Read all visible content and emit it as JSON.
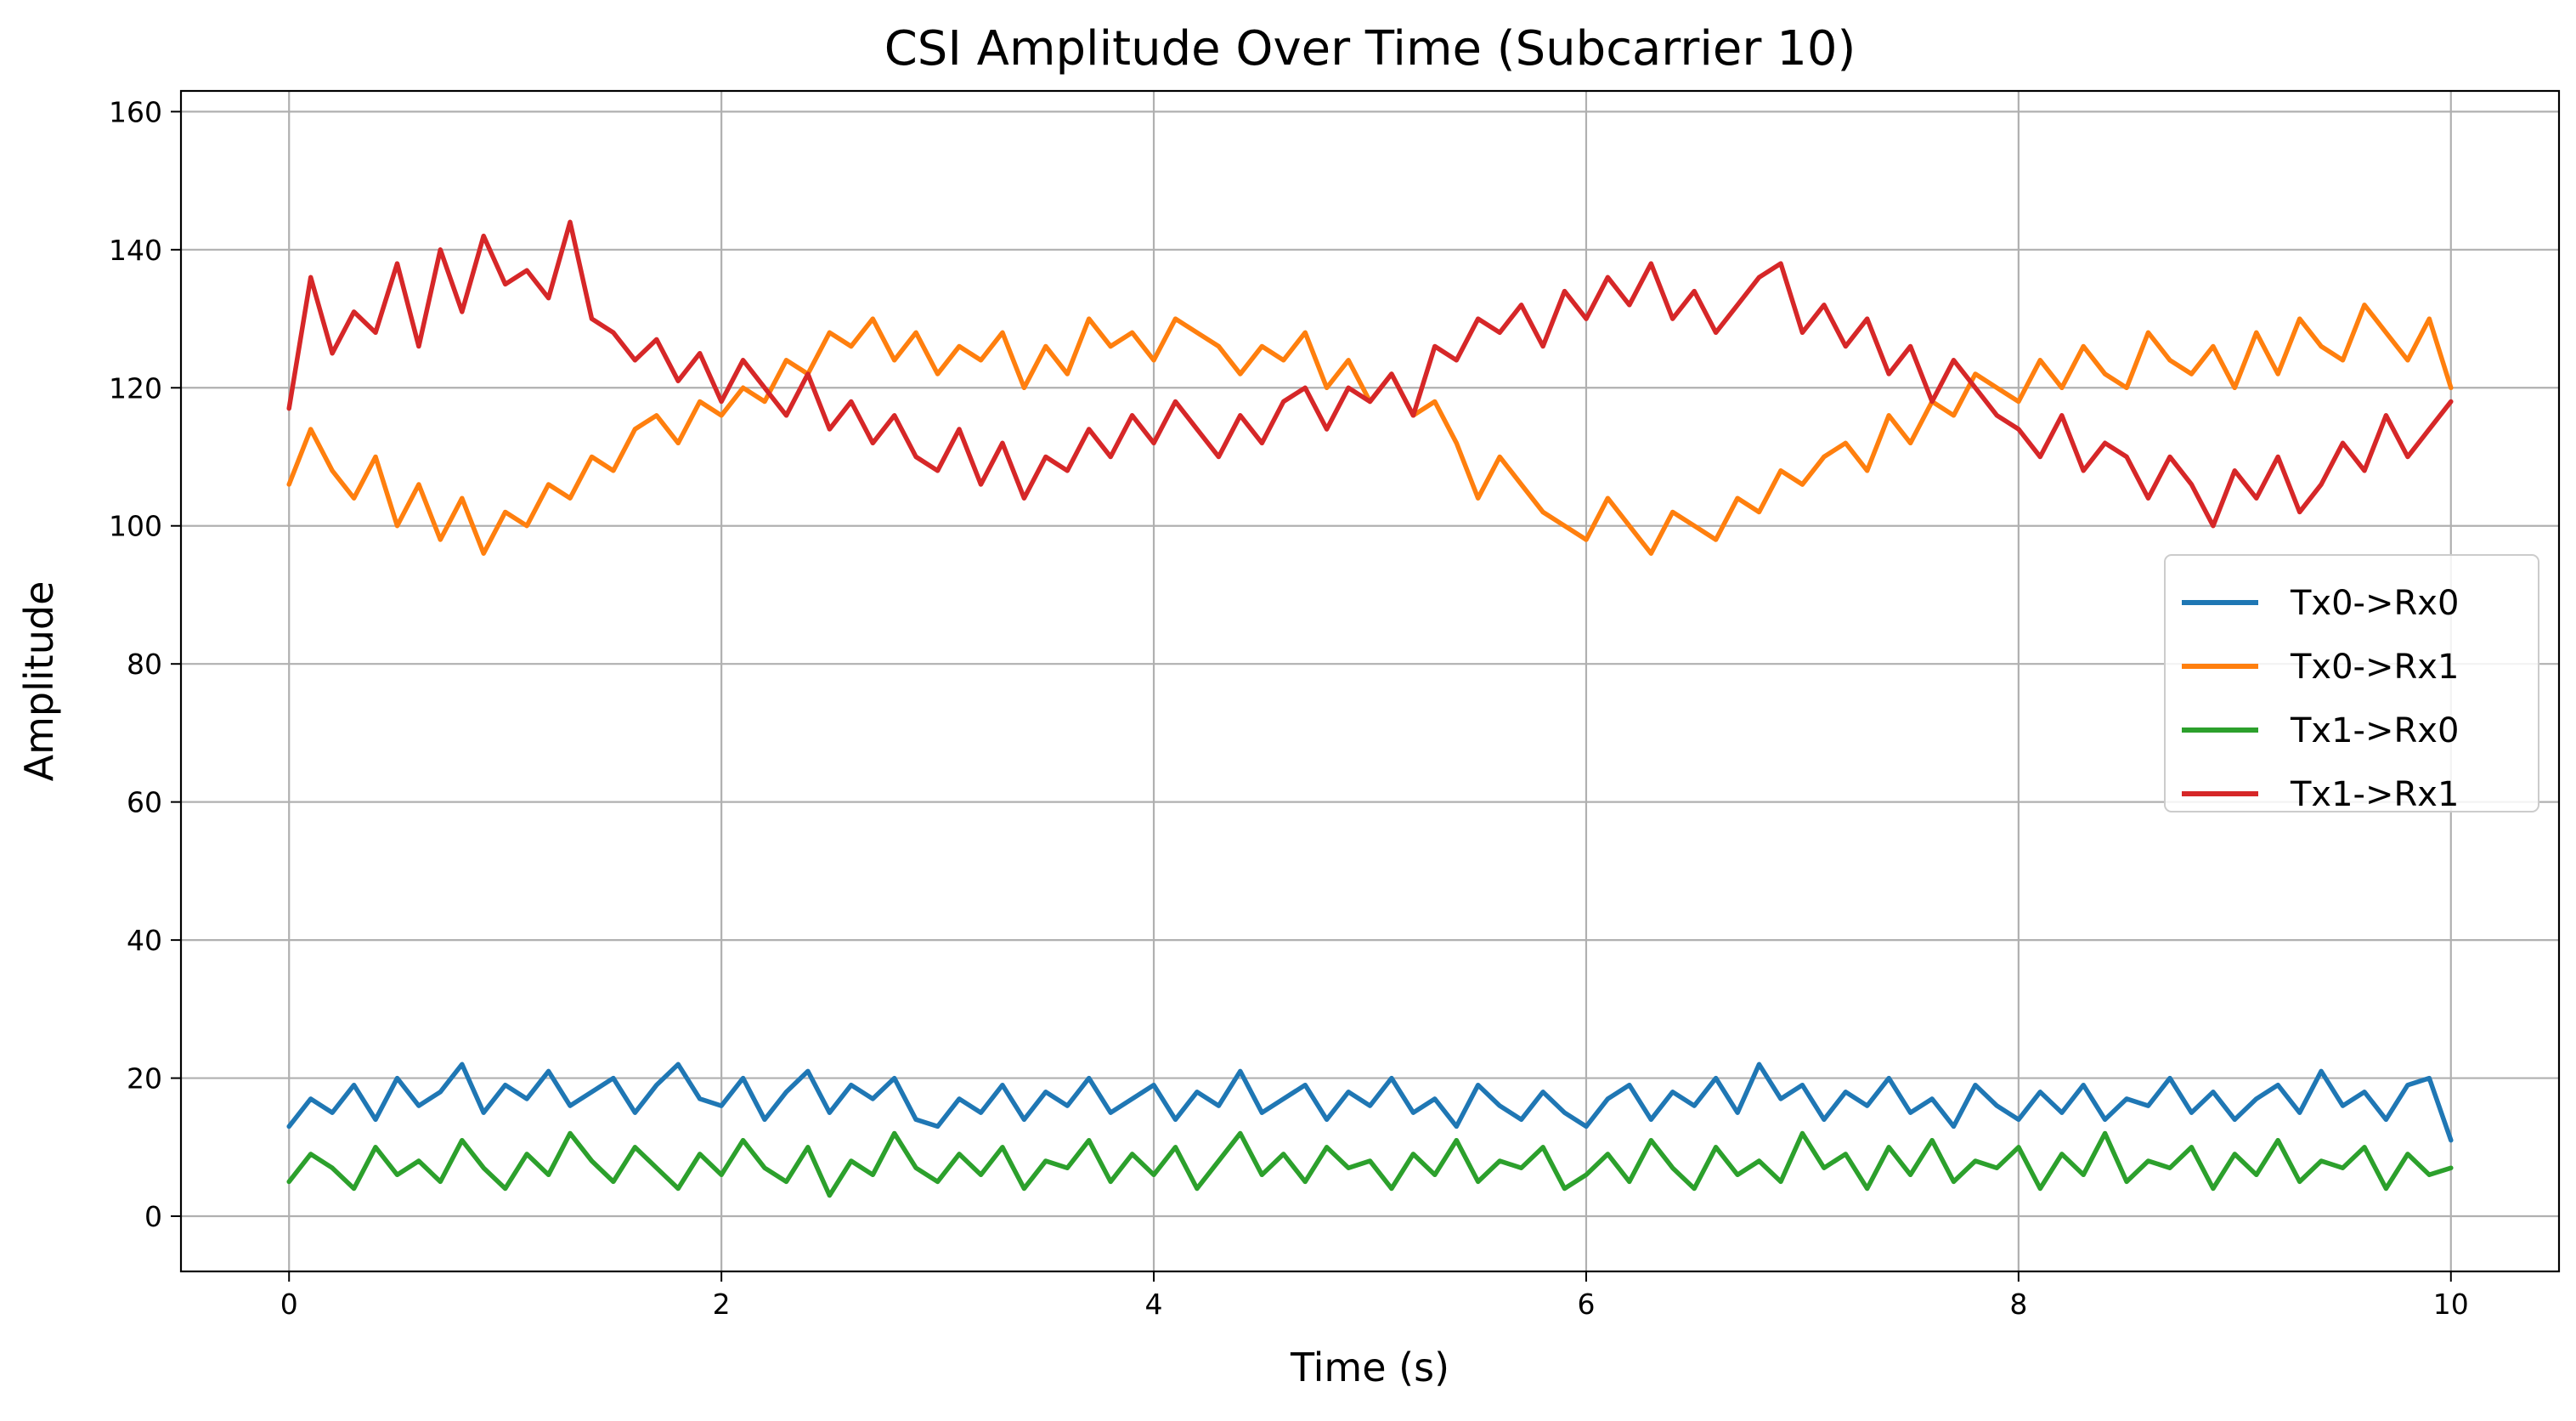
{
  "chart_data": {
    "type": "line",
    "title": "CSI Amplitude Over Time (Subcarrier 10)",
    "xlabel": "Time (s)",
    "ylabel": "Amplitude",
    "xlim": [
      -0.5,
      10.5
    ],
    "ylim": [
      -8,
      163
    ],
    "xticks": [
      0,
      2,
      4,
      6,
      8,
      10
    ],
    "yticks": [
      0,
      20,
      40,
      60,
      80,
      100,
      120,
      140,
      160
    ],
    "grid": true,
    "legend_position": "center-right",
    "x": [
      0.0,
      0.1,
      0.2,
      0.3,
      0.4,
      0.5,
      0.6,
      0.7,
      0.8,
      0.9,
      1.0,
      1.1,
      1.2,
      1.3,
      1.4,
      1.5,
      1.6,
      1.7,
      1.8,
      1.9,
      2.0,
      2.1,
      2.2,
      2.3,
      2.4,
      2.5,
      2.6,
      2.7,
      2.8,
      2.9,
      3.0,
      3.1,
      3.2,
      3.3,
      3.4,
      3.5,
      3.6,
      3.7,
      3.8,
      3.9,
      4.0,
      4.1,
      4.2,
      4.3,
      4.4,
      4.5,
      4.6,
      4.7,
      4.8,
      4.9,
      5.0,
      5.1,
      5.2,
      5.3,
      5.4,
      5.5,
      5.6,
      5.7,
      5.8,
      5.9,
      6.0,
      6.1,
      6.2,
      6.3,
      6.4,
      6.5,
      6.6,
      6.7,
      6.8,
      6.9,
      7.0,
      7.1,
      7.2,
      7.3,
      7.4,
      7.5,
      7.6,
      7.7,
      7.8,
      7.9,
      8.0,
      8.1,
      8.2,
      8.3,
      8.4,
      8.5,
      8.6,
      8.7,
      8.8,
      8.9,
      9.0,
      9.1,
      9.2,
      9.3,
      9.4,
      9.5,
      9.6,
      9.7,
      9.8,
      9.9,
      10.0
    ],
    "series": [
      {
        "name": "Tx0->Rx0",
        "color": "#1f77b4",
        "values": [
          13,
          17,
          15,
          19,
          14,
          20,
          16,
          18,
          22,
          15,
          19,
          17,
          21,
          16,
          18,
          20,
          15,
          19,
          22,
          17,
          16,
          20,
          14,
          18,
          21,
          15,
          19,
          17,
          20,
          14,
          13,
          17,
          15,
          19,
          14,
          18,
          16,
          20,
          15,
          17,
          19,
          14,
          18,
          16,
          21,
          15,
          17,
          19,
          14,
          18,
          16,
          20,
          15,
          17,
          13,
          19,
          16,
          14,
          18,
          15,
          13,
          17,
          19,
          14,
          18,
          16,
          20,
          15,
          22,
          17,
          19,
          14,
          18,
          16,
          20,
          15,
          17,
          13,
          19,
          16,
          14,
          18,
          15,
          19,
          14,
          17,
          16,
          20,
          15,
          18,
          14,
          17,
          19,
          15,
          21,
          16,
          18,
          14,
          19,
          20,
          11
        ]
      },
      {
        "name": "Tx0->Rx1",
        "color": "#ff7f0e",
        "values": [
          106,
          114,
          108,
          104,
          110,
          100,
          106,
          98,
          104,
          96,
          102,
          100,
          106,
          104,
          110,
          108,
          114,
          116,
          112,
          118,
          116,
          120,
          118,
          124,
          122,
          128,
          126,
          130,
          124,
          128,
          122,
          126,
          124,
          128,
          120,
          126,
          122,
          130,
          126,
          128,
          124,
          130,
          128,
          126,
          122,
          126,
          124,
          128,
          120,
          124,
          118,
          122,
          116,
          118,
          112,
          104,
          110,
          106,
          102,
          100,
          98,
          104,
          100,
          96,
          102,
          100,
          98,
          104,
          102,
          108,
          106,
          110,
          112,
          108,
          116,
          112,
          118,
          116,
          122,
          120,
          118,
          124,
          120,
          126,
          122,
          120,
          128,
          124,
          122,
          126,
          120,
          128,
          122,
          130,
          126,
          124,
          132,
          128,
          124,
          130,
          120
        ]
      },
      {
        "name": "Tx1->Rx0",
        "color": "#2ca02c",
        "values": [
          5,
          9,
          7,
          4,
          10,
          6,
          8,
          5,
          11,
          7,
          4,
          9,
          6,
          12,
          8,
          5,
          10,
          7,
          4,
          9,
          6,
          11,
          7,
          5,
          10,
          3,
          8,
          6,
          12,
          7,
          5,
          9,
          6,
          10,
          4,
          8,
          7,
          11,
          5,
          9,
          6,
          10,
          4,
          8,
          12,
          6,
          9,
          5,
          10,
          7,
          8,
          4,
          9,
          6,
          11,
          5,
          8,
          7,
          10,
          4,
          6,
          9,
          5,
          11,
          7,
          4,
          10,
          6,
          8,
          5,
          12,
          7,
          9,
          4,
          10,
          6,
          11,
          5,
          8,
          7,
          10,
          4,
          9,
          6,
          12,
          5,
          8,
          7,
          10,
          4,
          9,
          6,
          11,
          5,
          8,
          7,
          10,
          4,
          9,
          6,
          7
        ]
      },
      {
        "name": "Tx1->Rx1",
        "color": "#d62728",
        "values": [
          117,
          136,
          125,
          131,
          128,
          138,
          126,
          140,
          131,
          142,
          135,
          137,
          133,
          144,
          130,
          128,
          124,
          127,
          121,
          125,
          118,
          124,
          120,
          116,
          122,
          114,
          118,
          112,
          116,
          110,
          108,
          114,
          106,
          112,
          104,
          110,
          108,
          114,
          110,
          116,
          112,
          118,
          114,
          110,
          116,
          112,
          118,
          120,
          114,
          120,
          118,
          122,
          116,
          126,
          124,
          130,
          128,
          132,
          126,
          134,
          130,
          136,
          132,
          138,
          130,
          134,
          128,
          132,
          136,
          138,
          128,
          132,
          126,
          130,
          122,
          126,
          118,
          124,
          120,
          116,
          114,
          110,
          116,
          108,
          112,
          110,
          104,
          110,
          106,
          100,
          108,
          104,
          110,
          102,
          106,
          112,
          108,
          116,
          110,
          114,
          118
        ]
      }
    ]
  }
}
